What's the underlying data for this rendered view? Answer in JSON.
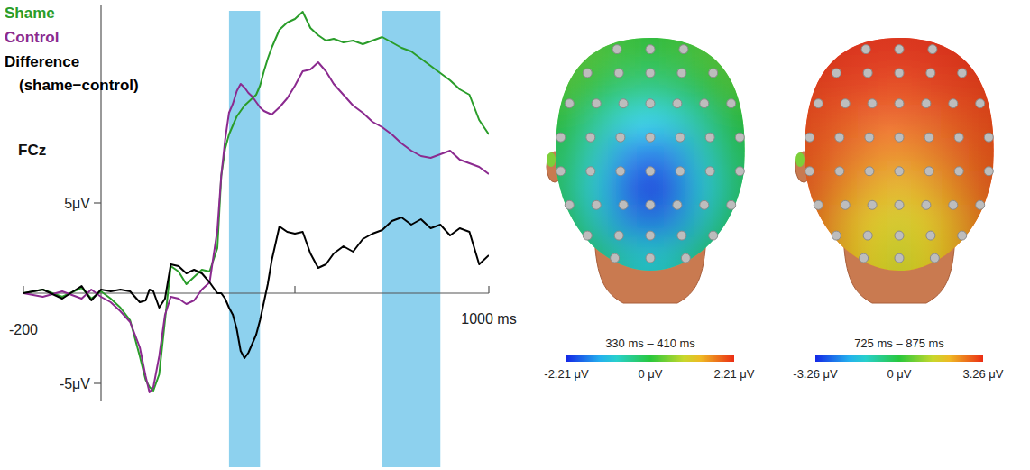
{
  "chart_data": [
    {
      "type": "line",
      "title": "FCz",
      "x": [
        -200,
        -150,
        -100,
        -50,
        -25,
        0,
        25,
        50,
        75,
        100,
        115,
        125,
        135,
        150,
        165,
        180,
        200,
        220,
        240,
        260,
        280,
        300,
        310,
        320,
        330,
        340,
        350,
        360,
        370,
        380,
        390,
        400,
        410,
        420,
        430,
        440,
        460,
        480,
        500,
        520,
        540,
        560,
        580,
        600,
        625,
        650,
        675,
        700,
        725,
        750,
        775,
        800,
        825,
        850,
        875,
        900,
        925,
        950,
        975,
        1000
      ],
      "series": [
        {
          "name": "Shame",
          "color": "#2a9d2a",
          "values": [
            0,
            0.2,
            -0.2,
            0.3,
            -0.3,
            0.1,
            -0.3,
            -0.8,
            -1.5,
            -3.5,
            -4.8,
            -5.2,
            -5.4,
            -4.5,
            -1.5,
            1.5,
            1.2,
            0.5,
            0.9,
            1.3,
            1.2,
            2.5,
            6.5,
            8,
            8.8,
            9.3,
            9.8,
            10.1,
            10.4,
            10.6,
            10.8,
            11,
            11.5,
            12.3,
            13,
            13.6,
            14.6,
            15,
            15.2,
            15.6,
            14.7,
            14.3,
            14,
            14.1,
            13.9,
            14,
            13.8,
            14,
            14.2,
            13.9,
            13.6,
            13.4,
            13,
            12.6,
            12.2,
            11.8,
            11.3,
            11,
            9.6,
            8.8
          ]
        },
        {
          "name": "Control",
          "color": "#8b2a8f",
          "values": [
            0,
            -0.2,
            0.1,
            -0.3,
            0.2,
            -0.2,
            -0.5,
            -1,
            -1.6,
            -3,
            -4.6,
            -5.5,
            -5.2,
            -3.5,
            -1.2,
            -0.2,
            -0.3,
            -0.6,
            -0.4,
            0.2,
            0.6,
            3.5,
            6.5,
            8.5,
            10,
            10.5,
            11.2,
            11.6,
            11.4,
            11.1,
            10.9,
            10.6,
            10.3,
            10.1,
            10,
            9.9,
            10.3,
            10.8,
            11.5,
            12.3,
            12.4,
            12.8,
            12.3,
            11.6,
            11,
            10.4,
            10,
            9.5,
            9.2,
            8.8,
            8.3,
            7.9,
            7.6,
            7.5,
            7.7,
            7.9,
            7.4,
            7.2,
            7,
            6.6
          ]
        },
        {
          "name": "Difference (shame−control)",
          "color": "#000000",
          "values": [
            0,
            0.2,
            -0.3,
            0.4,
            -0.4,
            0.2,
            0.1,
            0.2,
            0.1,
            -0.5,
            -0.4,
            0.2,
            0.1,
            -0.8,
            -0.3,
            1.6,
            1.5,
            1.1,
            1.3,
            1.1,
            0.6,
            0,
            0,
            -0.3,
            -0.8,
            -1.2,
            -2,
            -3.2,
            -3.6,
            -3.3,
            -2.8,
            -2.3,
            -1.5,
            -0.5,
            0.5,
            1.8,
            3.7,
            3.4,
            3.3,
            3.4,
            2.2,
            1.4,
            1.6,
            2.2,
            2.6,
            2.3,
            3,
            3.3,
            3.5,
            4,
            4.2,
            3.8,
            4.1,
            3.6,
            3.8,
            3.2,
            3.6,
            3.4,
            1.6,
            2.1
          ]
        }
      ],
      "xlim": [
        -200,
        1000
      ],
      "xticks": [
        {
          "value": -200,
          "label": "-200"
        },
        {
          "value": 1000,
          "label": "1000 ms"
        }
      ],
      "minor_xticks": [
        500
      ],
      "ylim": [
        -6,
        16
      ],
      "yticks": [
        {
          "value": 5,
          "label": "5μV"
        },
        {
          "value": -5,
          "label": "-5μV"
        }
      ],
      "windows": [
        {
          "start": 330,
          "end": 410
        },
        {
          "start": 725,
          "end": 875
        }
      ],
      "legend": "top-left",
      "grid": false
    },
    {
      "type": "topomap",
      "title": "330 ms – 410 ms",
      "values": [
        [
          0.3,
          0.2,
          0.1,
          0.0,
          0.1,
          0.2,
          0.3
        ],
        [
          0.2,
          0.0,
          -0.3,
          -0.4,
          -0.3,
          0.0,
          0.2
        ],
        [
          0.0,
          -0.5,
          -0.9,
          -1.1,
          -0.9,
          -0.5,
          0.0
        ],
        [
          -0.2,
          -0.8,
          -1.5,
          -1.8,
          -1.5,
          -0.8,
          -0.2
        ],
        [
          -0.3,
          -1.0,
          -1.8,
          -2.2,
          -1.8,
          -1.0,
          -0.3
        ],
        [
          -0.2,
          -0.8,
          -1.5,
          -1.8,
          -1.5,
          -0.8,
          -0.2
        ],
        [
          0.0,
          -0.4,
          -0.8,
          -1.0,
          -0.8,
          -0.4,
          0.0
        ]
      ],
      "color_range": [
        -2.21,
        2.21
      ],
      "color_ticks": [
        {
          "value": -2.21,
          "label": "-2.21 μV"
        },
        {
          "value": 0,
          "label": "0 μV"
        },
        {
          "value": 2.21,
          "label": "2.21 μV"
        }
      ]
    },
    {
      "type": "topomap",
      "title": "725 ms – 875 ms",
      "values": [
        [
          3.2,
          3.2,
          3.2,
          3.2,
          3.2,
          3.2,
          3.2
        ],
        [
          3.1,
          3.1,
          3.1,
          3.0,
          3.1,
          3.1,
          3.1
        ],
        [
          3.0,
          2.9,
          2.8,
          2.8,
          2.8,
          2.9,
          3.0
        ],
        [
          2.9,
          2.7,
          2.5,
          2.4,
          2.5,
          2.7,
          2.9
        ],
        [
          2.8,
          2.4,
          2.1,
          1.9,
          2.1,
          2.4,
          2.8
        ],
        [
          2.6,
          2.1,
          1.7,
          1.5,
          1.7,
          2.1,
          2.6
        ],
        [
          2.5,
          2.0,
          1.6,
          1.4,
          1.6,
          2.0,
          2.5
        ]
      ],
      "color_range": [
        -3.26,
        3.26
      ],
      "color_ticks": [
        {
          "value": -3.26,
          "label": "-3.26 μV"
        },
        {
          "value": 0,
          "label": "0 μV"
        },
        {
          "value": 3.26,
          "label": "3.26 μV"
        }
      ]
    }
  ]
}
